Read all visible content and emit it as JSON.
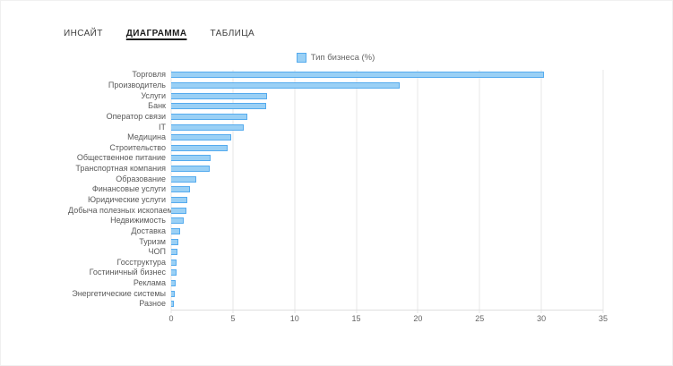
{
  "tabs": [
    {
      "label": "ИНСАЙТ",
      "active": false
    },
    {
      "label": "ДИАГРАММА",
      "active": true
    },
    {
      "label": "ТАБЛИЦА",
      "active": false
    }
  ],
  "chart_data": {
    "type": "bar",
    "orientation": "horizontal",
    "legend_label": "Тип бизнеса (%)",
    "categories": [
      "Торговля",
      "Производитель",
      "Услуги",
      "Банк",
      "Оператор связи",
      "IT",
      "Медицина",
      "Строительство",
      "Общественное питание",
      "Транспортная компания",
      "Образование",
      "Финансовые услуги",
      "Юридические услуги",
      "Добыча полезных ископаемых",
      "Недвижимость",
      "Доставка",
      "Туризм",
      "ЧОП",
      "Госструктура",
      "Гостиничный бизнес",
      "Реклама",
      "Энергетические системы",
      "Разное"
    ],
    "values": [
      30.2,
      18.5,
      7.8,
      7.7,
      6.2,
      5.9,
      4.9,
      4.6,
      3.2,
      3.1,
      2.0,
      1.5,
      1.3,
      1.2,
      1.0,
      0.7,
      0.6,
      0.5,
      0.45,
      0.4,
      0.35,
      0.3,
      0.2
    ],
    "xlabel": "",
    "ylabel": "",
    "xlim": [
      0,
      35
    ],
    "xticks": [
      0,
      5,
      10,
      15,
      20,
      25,
      30,
      35
    ],
    "grid": true,
    "legend_position": "top",
    "bar_fill": "#9ad0f5",
    "bar_border": "#55abee"
  }
}
